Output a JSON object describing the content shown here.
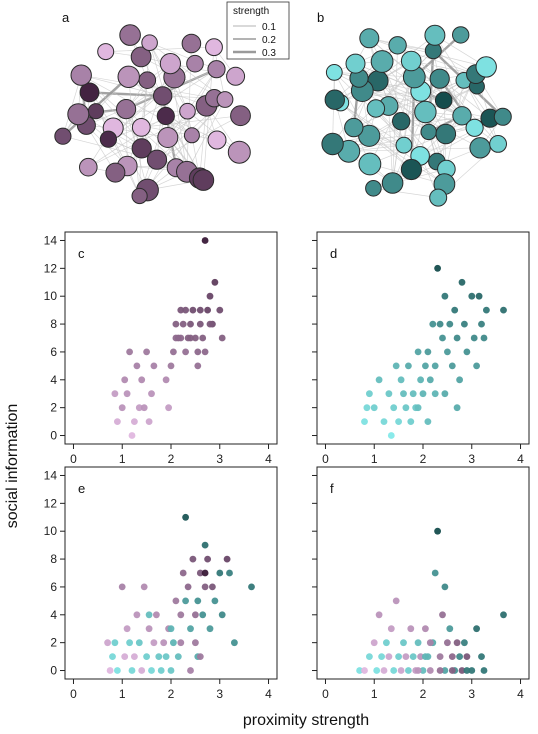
{
  "figure": {
    "ylabel": "social information",
    "xlabel": "proximity strength"
  },
  "legend": {
    "title": "strength",
    "entries": [
      "0.1",
      "0.2",
      "0.3"
    ],
    "line_widths": [
      0.8,
      1.6,
      2.6
    ]
  },
  "colors": {
    "purple_light": "#f2c8f2",
    "purple_dark": "#3a1a38",
    "teal_light": "#8af2f2",
    "teal_dark": "#0f4444",
    "edge": "#c8c8c8",
    "edge_strong": "#999999"
  },
  "networks": [
    {
      "letter": "a",
      "palette": "purple",
      "node_count": 45,
      "node_strengths": [
        0.9,
        0.1,
        0.7,
        0.3,
        0.5,
        0.2,
        0.8,
        0.6,
        0.4,
        0.1,
        0.5,
        0.7,
        0.3,
        0.6,
        0.9,
        0.2,
        0.4,
        0.8,
        0.5,
        0.3,
        0.6,
        0.1,
        0.7,
        0.4,
        0.5,
        0.95,
        0.3,
        0.6,
        0.2,
        0.8,
        0.5,
        0.4,
        0.7,
        0.1,
        0.6,
        0.3,
        0.5,
        0.8,
        0.4,
        0.2,
        0.6,
        0.5,
        0.3,
        0.7,
        0.1
      ]
    },
    {
      "letter": "b",
      "palette": "teal",
      "node_count": 48,
      "node_strengths": [
        0.3,
        0.8,
        0.1,
        0.6,
        0.4,
        0.95,
        0.2,
        0.5,
        0.7,
        0.3,
        0.6,
        0.1,
        0.8,
        0.4,
        0.5,
        0.2,
        0.7,
        0.6,
        0.3,
        0.9,
        0.4,
        0.1,
        0.5,
        0.7,
        0.2,
        0.6,
        0.8,
        0.3,
        0.4,
        0.5,
        0.1,
        0.7,
        0.6,
        0.2,
        0.9,
        0.4,
        0.3,
        0.5,
        0.8,
        0.1,
        0.6,
        0.4,
        0.2,
        0.7,
        0.5,
        0.3,
        0.1,
        0.6
      ]
    }
  ],
  "chart_data": [
    {
      "panel": "c",
      "type": "scatter",
      "palette": "purple",
      "xlim": [
        0,
        4
      ],
      "ylim": [
        0,
        14
      ],
      "xticks": [
        "0",
        "1",
        "2",
        "3",
        "4"
      ],
      "yticks": [
        "0",
        "2",
        "4",
        "6",
        "8",
        "10",
        "12",
        "14"
      ],
      "show_xticks": true,
      "show_yticks": true,
      "points": [
        [
          0.85,
          3,
          0.25
        ],
        [
          0.9,
          1,
          0.15
        ],
        [
          1.0,
          2,
          0.3
        ],
        [
          1.05,
          4,
          0.35
        ],
        [
          1.1,
          3,
          0.3
        ],
        [
          1.15,
          6,
          0.45
        ],
        [
          1.2,
          0,
          0.1
        ],
        [
          1.25,
          1,
          0.15
        ],
        [
          1.3,
          5,
          0.4
        ],
        [
          1.35,
          2,
          0.25
        ],
        [
          1.4,
          4,
          0.35
        ],
        [
          1.45,
          2,
          0.3
        ],
        [
          1.5,
          6,
          0.45
        ],
        [
          1.55,
          1,
          0.2
        ],
        [
          1.6,
          3,
          0.3
        ],
        [
          1.65,
          5,
          0.4
        ],
        [
          1.9,
          4,
          0.35
        ],
        [
          1.95,
          2,
          0.25
        ],
        [
          2.0,
          5,
          0.45
        ],
        [
          2.05,
          6,
          0.5
        ],
        [
          2.1,
          8,
          0.6
        ],
        [
          2.15,
          7,
          0.6
        ],
        [
          2.2,
          9,
          0.65
        ],
        [
          2.25,
          8,
          0.6
        ],
        [
          2.3,
          6,
          0.5
        ],
        [
          2.35,
          7,
          0.6
        ],
        [
          2.4,
          8,
          0.65
        ],
        [
          2.45,
          9,
          0.7
        ],
        [
          2.5,
          7,
          0.6
        ],
        [
          2.55,
          6,
          0.55
        ],
        [
          2.6,
          8,
          0.65
        ],
        [
          2.65,
          7,
          0.6
        ],
        [
          2.7,
          14,
          1.0
        ],
        [
          2.75,
          9,
          0.75
        ],
        [
          2.8,
          10,
          0.75
        ],
        [
          2.85,
          8,
          0.7
        ],
        [
          2.9,
          11,
          0.8
        ],
        [
          3.0,
          9,
          0.7
        ],
        [
          3.05,
          7,
          0.6
        ],
        [
          2.55,
          5,
          0.5
        ],
        [
          2.6,
          9,
          0.7
        ],
        [
          2.7,
          6,
          0.55
        ],
        [
          2.3,
          9,
          0.65
        ],
        [
          2.4,
          7,
          0.6
        ],
        [
          2.2,
          7,
          0.55
        ],
        [
          2.1,
          7,
          0.55
        ],
        [
          2.8,
          8,
          0.65
        ]
      ]
    },
    {
      "panel": "d",
      "type": "scatter",
      "palette": "teal",
      "xlim": [
        0,
        4
      ],
      "ylim": [
        0,
        14
      ],
      "xticks": [
        "0",
        "1",
        "2",
        "3",
        "4"
      ],
      "yticks": [],
      "show_xticks": true,
      "show_yticks": false,
      "points": [
        [
          0.8,
          1,
          0.1
        ],
        [
          0.85,
          2,
          0.15
        ],
        [
          0.9,
          3,
          0.2
        ],
        [
          1.0,
          2,
          0.2
        ],
        [
          1.1,
          4,
          0.3
        ],
        [
          1.2,
          1,
          0.15
        ],
        [
          1.3,
          3,
          0.25
        ],
        [
          1.35,
          0,
          0.05
        ],
        [
          1.4,
          2,
          0.2
        ],
        [
          1.45,
          5,
          0.35
        ],
        [
          1.5,
          1,
          0.15
        ],
        [
          1.55,
          4,
          0.3
        ],
        [
          1.6,
          3,
          0.3
        ],
        [
          1.65,
          2,
          0.25
        ],
        [
          1.7,
          5,
          0.4
        ],
        [
          1.75,
          1,
          0.2
        ],
        [
          1.8,
          3,
          0.3
        ],
        [
          1.85,
          2,
          0.25
        ],
        [
          1.9,
          6,
          0.45
        ],
        [
          1.95,
          4,
          0.35
        ],
        [
          2.0,
          3,
          0.35
        ],
        [
          2.05,
          5,
          0.45
        ],
        [
          2.1,
          6,
          0.5
        ],
        [
          2.15,
          4,
          0.4
        ],
        [
          2.2,
          8,
          0.55
        ],
        [
          2.25,
          5,
          0.45
        ],
        [
          2.3,
          12,
          0.95
        ],
        [
          2.35,
          8,
          0.6
        ],
        [
          2.4,
          7,
          0.55
        ],
        [
          2.45,
          10,
          0.7
        ],
        [
          2.5,
          6,
          0.5
        ],
        [
          2.55,
          8,
          0.6
        ],
        [
          2.6,
          5,
          0.5
        ],
        [
          2.65,
          9,
          0.7
        ],
        [
          2.7,
          7,
          0.6
        ],
        [
          2.75,
          4,
          0.45
        ],
        [
          2.8,
          11,
          0.8
        ],
        [
          2.85,
          8,
          0.65
        ],
        [
          2.9,
          6,
          0.55
        ],
        [
          3.0,
          10,
          0.75
        ],
        [
          3.05,
          7,
          0.6
        ],
        [
          3.1,
          5,
          0.5
        ],
        [
          3.15,
          10,
          0.8
        ],
        [
          3.2,
          8,
          0.65
        ],
        [
          3.25,
          7,
          0.6
        ],
        [
          3.3,
          9,
          0.7
        ],
        [
          3.65,
          9,
          0.75
        ],
        [
          2.45,
          3,
          0.4
        ],
        [
          2.7,
          2,
          0.4
        ],
        [
          1.9,
          2,
          0.3
        ],
        [
          2.1,
          1,
          0.3
        ],
        [
          2.25,
          3,
          0.35
        ]
      ]
    },
    {
      "panel": "e",
      "type": "scatter",
      "palette": "mixed",
      "xlim": [
        0,
        4
      ],
      "ylim": [
        0,
        14
      ],
      "xticks": [
        "0",
        "1",
        "2",
        "3",
        "4"
      ],
      "yticks": [
        "0",
        "2",
        "4",
        "6",
        "8",
        "10",
        "12",
        "14"
      ],
      "show_xticks": true,
      "show_yticks": true,
      "points": [
        [
          0.7,
          2,
          0.2,
          "p"
        ],
        [
          0.75,
          0,
          0.1,
          "p"
        ],
        [
          0.8,
          1,
          0.15,
          "t"
        ],
        [
          0.85,
          2,
          0.2,
          "t"
        ],
        [
          0.9,
          0,
          0.1,
          "t"
        ],
        [
          1.0,
          6,
          0.4,
          "p"
        ],
        [
          1.05,
          1,
          0.15,
          "p"
        ],
        [
          1.1,
          3,
          0.25,
          "p"
        ],
        [
          1.15,
          2,
          0.2,
          "t"
        ],
        [
          1.2,
          0,
          0.15,
          "t"
        ],
        [
          1.25,
          1,
          0.15,
          "p"
        ],
        [
          1.3,
          4,
          0.3,
          "p"
        ],
        [
          1.35,
          2,
          0.25,
          "t"
        ],
        [
          1.4,
          0,
          0.15,
          "p"
        ],
        [
          1.45,
          6,
          0.35,
          "p"
        ],
        [
          1.5,
          1,
          0.2,
          "t"
        ],
        [
          1.55,
          3,
          0.3,
          "p"
        ],
        [
          1.6,
          0,
          0.15,
          "t"
        ],
        [
          1.65,
          2,
          0.25,
          "p"
        ],
        [
          1.7,
          4,
          0.35,
          "p"
        ],
        [
          1.75,
          1,
          0.25,
          "t"
        ],
        [
          1.8,
          0,
          0.2,
          "t"
        ],
        [
          1.85,
          2,
          0.3,
          "p"
        ],
        [
          1.9,
          1,
          0.25,
          "t"
        ],
        [
          1.95,
          3,
          0.35,
          "p"
        ],
        [
          2.0,
          0,
          0.25,
          "t"
        ],
        [
          2.05,
          2,
          0.35,
          "t"
        ],
        [
          2.1,
          5,
          0.45,
          "p"
        ],
        [
          2.15,
          1,
          0.3,
          "t"
        ],
        [
          2.2,
          4,
          0.45,
          "p"
        ],
        [
          2.25,
          7,
          0.55,
          "p"
        ],
        [
          2.3,
          11,
          0.9,
          "t"
        ],
        [
          2.35,
          6,
          0.55,
          "p"
        ],
        [
          2.4,
          3,
          0.45,
          "t"
        ],
        [
          2.45,
          8,
          0.65,
          "p"
        ],
        [
          2.5,
          2,
          0.45,
          "p"
        ],
        [
          2.55,
          5,
          0.55,
          "t"
        ],
        [
          2.6,
          7,
          0.65,
          "p"
        ],
        [
          2.65,
          4,
          0.55,
          "t"
        ],
        [
          2.7,
          6,
          0.6,
          "p"
        ],
        [
          2.75,
          8,
          0.7,
          "p"
        ],
        [
          2.8,
          3,
          0.5,
          "t"
        ],
        [
          2.85,
          6,
          0.65,
          "p"
        ],
        [
          2.9,
          5,
          0.55,
          "t"
        ],
        [
          3.0,
          7,
          0.7,
          "t"
        ],
        [
          3.05,
          4,
          0.6,
          "t"
        ],
        [
          3.15,
          8,
          0.75,
          "p"
        ],
        [
          3.2,
          7,
          0.65,
          "t"
        ],
        [
          3.3,
          2,
          0.55,
          "t"
        ],
        [
          3.65,
          6,
          0.7,
          "t"
        ],
        [
          2.7,
          9,
          0.75,
          "t"
        ],
        [
          2.55,
          1,
          0.4,
          "t"
        ],
        [
          2.4,
          0,
          0.4,
          "p"
        ],
        [
          1.55,
          4,
          0.3,
          "t"
        ],
        [
          2.0,
          3,
          0.35,
          "t"
        ],
        [
          2.3,
          5,
          0.5,
          "t"
        ],
        [
          2.5,
          4,
          0.5,
          "p"
        ],
        [
          2.6,
          1,
          0.45,
          "p"
        ],
        [
          2.2,
          2,
          0.4,
          "p"
        ],
        [
          2.7,
          7,
          1.0,
          "p"
        ]
      ]
    },
    {
      "panel": "f",
      "type": "scatter",
      "palette": "mixed",
      "xlim": [
        0,
        4
      ],
      "ylim": [
        0,
        14
      ],
      "xticks": [
        "0",
        "1",
        "2",
        "3",
        "4"
      ],
      "yticks": [],
      "show_xticks": true,
      "show_yticks": false,
      "points": [
        [
          0.7,
          0,
          0.1,
          "t"
        ],
        [
          0.8,
          0,
          0.1,
          "p"
        ],
        [
          0.9,
          1,
          0.15,
          "t"
        ],
        [
          1.0,
          2,
          0.2,
          "p"
        ],
        [
          1.05,
          0,
          0.1,
          "t"
        ],
        [
          1.1,
          4,
          0.3,
          "p"
        ],
        [
          1.15,
          1,
          0.15,
          "t"
        ],
        [
          1.2,
          0,
          0.15,
          "p"
        ],
        [
          1.25,
          2,
          0.2,
          "t"
        ],
        [
          1.3,
          1,
          0.2,
          "p"
        ],
        [
          1.35,
          3,
          0.25,
          "p"
        ],
        [
          1.4,
          0,
          0.15,
          "t"
        ],
        [
          1.45,
          5,
          0.3,
          "p"
        ],
        [
          1.5,
          1,
          0.2,
          "t"
        ],
        [
          1.55,
          0,
          0.2,
          "p"
        ],
        [
          1.6,
          2,
          0.25,
          "t"
        ],
        [
          1.65,
          1,
          0.25,
          "p"
        ],
        [
          1.7,
          0,
          0.2,
          "t"
        ],
        [
          1.75,
          3,
          0.3,
          "p"
        ],
        [
          1.8,
          1,
          0.25,
          "t"
        ],
        [
          1.85,
          0,
          0.25,
          "p"
        ],
        [
          1.9,
          2,
          0.3,
          "t"
        ],
        [
          1.95,
          1,
          0.3,
          "p"
        ],
        [
          2.0,
          0,
          0.3,
          "t"
        ],
        [
          2.05,
          3,
          0.35,
          "p"
        ],
        [
          2.1,
          1,
          0.35,
          "t"
        ],
        [
          2.15,
          0,
          0.35,
          "p"
        ],
        [
          2.2,
          2,
          0.4,
          "t"
        ],
        [
          2.25,
          7,
          0.55,
          "t"
        ],
        [
          2.3,
          10,
          0.95,
          "t"
        ],
        [
          2.35,
          1,
          0.45,
          "p"
        ],
        [
          2.4,
          4,
          0.5,
          "p"
        ],
        [
          2.45,
          0,
          0.45,
          "t"
        ],
        [
          2.5,
          2,
          0.5,
          "p"
        ],
        [
          2.55,
          3,
          0.5,
          "t"
        ],
        [
          2.6,
          1,
          0.55,
          "p"
        ],
        [
          2.65,
          0,
          0.55,
          "t"
        ],
        [
          2.7,
          2,
          0.6,
          "p"
        ],
        [
          2.75,
          1,
          0.6,
          "t"
        ],
        [
          2.8,
          0,
          0.65,
          "p"
        ],
        [
          2.85,
          2,
          0.65,
          "t"
        ],
        [
          2.9,
          1,
          0.65,
          "p"
        ],
        [
          3.0,
          0,
          0.7,
          "t"
        ],
        [
          3.1,
          3,
          0.75,
          "t"
        ],
        [
          3.2,
          1,
          0.7,
          "t"
        ],
        [
          3.25,
          0,
          0.7,
          "t"
        ],
        [
          3.65,
          4,
          0.75,
          "t"
        ],
        [
          2.45,
          6,
          0.6,
          "t"
        ],
        [
          2.05,
          1,
          0.35,
          "t"
        ],
        [
          2.6,
          0,
          0.6,
          "p"
        ],
        [
          2.35,
          0,
          0.5,
          "p"
        ],
        [
          1.9,
          0,
          0.3,
          "p"
        ],
        [
          2.9,
          0,
          0.7,
          "t"
        ],
        [
          2.15,
          2,
          0.4,
          "p"
        ]
      ]
    }
  ]
}
